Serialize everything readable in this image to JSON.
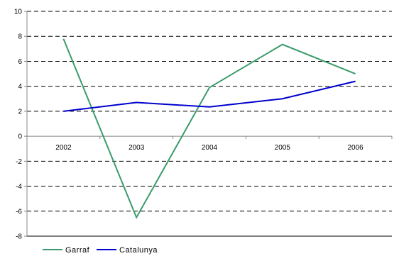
{
  "chart_data": {
    "type": "line",
    "categories": [
      "2002",
      "2003",
      "2004",
      "2005",
      "2006"
    ],
    "series": [
      {
        "name": "Garraf",
        "values": [
          7.8,
          -6.5,
          3.9,
          7.35,
          5.0
        ],
        "color": "#3a9b6b"
      },
      {
        "name": "Catalunya",
        "values": [
          2.0,
          2.7,
          2.35,
          3.0,
          4.4
        ],
        "color": "#0000cc"
      }
    ],
    "ylim": [
      -8,
      10
    ],
    "yticks": [
      "10",
      "8",
      "6",
      "4",
      "2",
      "0",
      "-2",
      "-4",
      "-6",
      "-8"
    ],
    "grid": "dashed horizontal",
    "legend_position": "bottom-left"
  }
}
